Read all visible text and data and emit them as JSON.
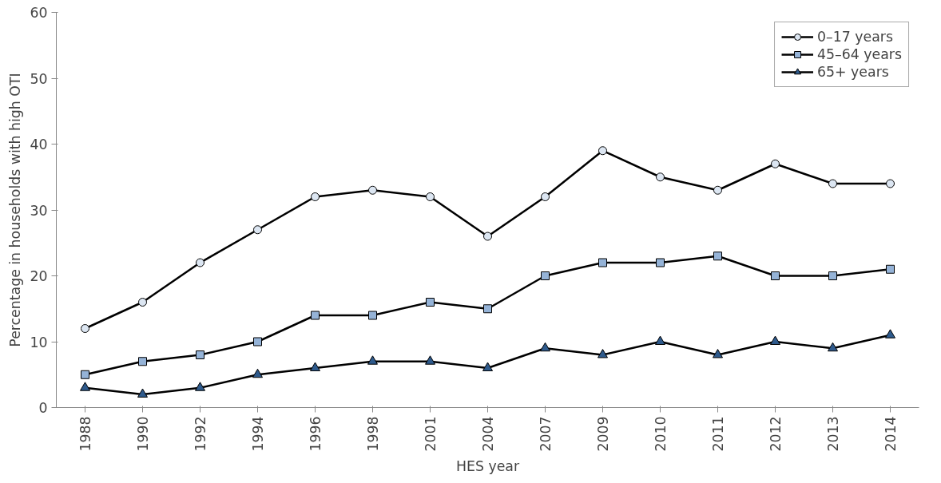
{
  "chart_data": {
    "type": "line",
    "xlabel": "HES year",
    "ylabel": "Percentage in households with high OTI",
    "categories": [
      "1988",
      "1990",
      "1992",
      "1994",
      "1996",
      "1998",
      "2001",
      "2004",
      "2007",
      "2009",
      "2010",
      "2011",
      "2012",
      "2013",
      "2014"
    ],
    "series": [
      {
        "name": "0–17 years",
        "color": "#dce6f2",
        "marker": "circle",
        "values": [
          12,
          16,
          22,
          27,
          32,
          33,
          32,
          26,
          32,
          39,
          35,
          33,
          37,
          34,
          34
        ]
      },
      {
        "name": "45–64 years",
        "color": "#95b3d7",
        "marker": "square",
        "values": [
          5,
          7,
          8,
          10,
          14,
          14,
          16,
          15,
          20,
          22,
          22,
          23,
          20,
          20,
          21
        ]
      },
      {
        "name": "65+ years",
        "color": "#2e5a8c",
        "marker": "triangle",
        "values": [
          3,
          2,
          3,
          5,
          6,
          7,
          7,
          6,
          9,
          8,
          10,
          8,
          10,
          9,
          11
        ]
      }
    ],
    "ylim": [
      0,
      60
    ],
    "yticks": [
      0,
      10,
      20,
      30,
      40,
      50,
      60
    ],
    "grid": false,
    "legend": "top right",
    "line_style": "solid"
  }
}
